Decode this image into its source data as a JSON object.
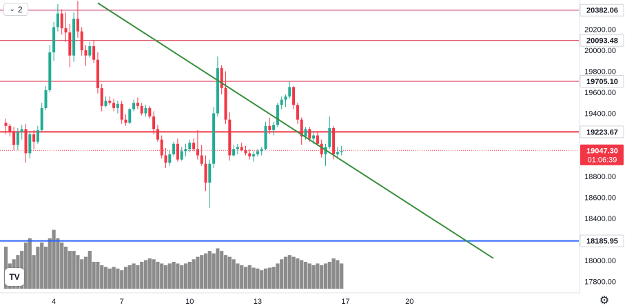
{
  "toolbar": {
    "collapse_count": "2",
    "collapse_icon": "chevron-down-icon"
  },
  "logo": {
    "name": "tradingview-logo",
    "text": "TV"
  },
  "settings_icon": "gear-icon",
  "colors": {
    "up": "#22ab94",
    "down": "#f23645",
    "volume": "#8c8c8c",
    "resistance": "#c2185b",
    "support": "#f23645",
    "level_blue": "#2962ff",
    "trendline": "#388e3c",
    "last_price_bg": "#f23645"
  },
  "chart_data": {
    "type": "candlestick",
    "y_axis": {
      "range": [
        17700,
        20520
      ],
      "ticks": [
        17800,
        18000,
        18200,
        18400,
        18600,
        18800,
        19000,
        19200,
        19400,
        19600,
        19800,
        20000,
        20200
      ]
    },
    "x_axis": {
      "ticks": [
        {
          "label": "4",
          "bar": 12
        },
        {
          "label": "7",
          "bar": 29
        },
        {
          "label": "10",
          "bar": 46
        },
        {
          "label": "13",
          "bar": 63
        },
        {
          "label": "17",
          "bar": 85
        },
        {
          "label": "20",
          "bar": 101
        }
      ]
    },
    "levels": [
      {
        "value": 20382.06,
        "label": "20382.06",
        "color": "#c2185b",
        "width": 1
      },
      {
        "value": 20093.48,
        "label": "20093.48",
        "color": "#d6223c",
        "width": 1
      },
      {
        "value": 19705.1,
        "label": "19705.10",
        "color": "#d6223c",
        "width": 1
      },
      {
        "value": 19223.67,
        "label": "19223.67",
        "color": "#f23645",
        "width": 2
      },
      {
        "value": 18185.95,
        "label": "18185.95",
        "color": "#2962ff",
        "width": 2
      }
    ],
    "last_price": {
      "value": 19047.3,
      "label": "19047.30",
      "timer": "01:06:39"
    },
    "trendline": {
      "start": {
        "bar": 23,
        "value": 20450
      },
      "end": {
        "bar": 122,
        "value": 18020
      }
    },
    "ohlc": [
      [
        19310,
        19350,
        19200,
        19280
      ],
      [
        19280,
        19300,
        19180,
        19230
      ],
      [
        19230,
        19270,
        19050,
        19100
      ],
      [
        19100,
        19260,
        19050,
        19220
      ],
      [
        19220,
        19290,
        19150,
        19250
      ],
      [
        19250,
        19300,
        18930,
        19020
      ],
      [
        19020,
        19230,
        18970,
        19200
      ],
      [
        19200,
        19240,
        19060,
        19130
      ],
      [
        19130,
        19280,
        19110,
        19240
      ],
      [
        19240,
        19500,
        19220,
        19450
      ],
      [
        19450,
        19660,
        19430,
        19620
      ],
      [
        19620,
        20050,
        19600,
        19980
      ],
      [
        19980,
        20270,
        19900,
        20220
      ],
      [
        20220,
        20440,
        20180,
        20350
      ],
      [
        20350,
        20390,
        20150,
        20210
      ],
      [
        20210,
        20360,
        20080,
        20170
      ],
      [
        20170,
        20250,
        19840,
        19950
      ],
      [
        19950,
        20360,
        19890,
        20300
      ],
      [
        20300,
        20470,
        20120,
        20180
      ],
      [
        20180,
        20220,
        19950,
        20000
      ],
      [
        20000,
        20050,
        19850,
        19950
      ],
      [
        19950,
        20080,
        19930,
        20040
      ],
      [
        20040,
        20090,
        19880,
        19910
      ],
      [
        19910,
        19980,
        19590,
        19640
      ],
      [
        19640,
        19680,
        19420,
        19470
      ],
      [
        19470,
        19560,
        19460,
        19520
      ],
      [
        19520,
        19560,
        19480,
        19500
      ],
      [
        19500,
        19540,
        19420,
        19450
      ],
      [
        19450,
        19520,
        19400,
        19490
      ],
      [
        19490,
        19520,
        19300,
        19340
      ],
      [
        19340,
        19390,
        19280,
        19310
      ],
      [
        19310,
        19450,
        19300,
        19440
      ],
      [
        19440,
        19530,
        19420,
        19500
      ],
      [
        19500,
        19550,
        19440,
        19470
      ],
      [
        19470,
        19500,
        19380,
        19400
      ],
      [
        19400,
        19480,
        19370,
        19450
      ],
      [
        19450,
        19470,
        19350,
        19370
      ],
      [
        19370,
        19420,
        19200,
        19250
      ],
      [
        19250,
        19290,
        19130,
        19150
      ],
      [
        19150,
        19190,
        18970,
        19000
      ],
      [
        19000,
        19070,
        18880,
        18930
      ],
      [
        18930,
        19050,
        18900,
        19010
      ],
      [
        19010,
        19130,
        18990,
        19110
      ],
      [
        19110,
        19160,
        18940,
        18960
      ],
      [
        18960,
        19080,
        18950,
        19040
      ],
      [
        19040,
        19110,
        18990,
        19060
      ],
      [
        19060,
        19150,
        19030,
        19120
      ],
      [
        19120,
        19160,
        19040,
        19060
      ],
      [
        19060,
        19240,
        18960,
        19000
      ],
      [
        19000,
        19100,
        18900,
        18920
      ],
      [
        18920,
        19000,
        18660,
        18740
      ],
      [
        18740,
        18960,
        18500,
        18920
      ],
      [
        18920,
        19460,
        18880,
        19400
      ],
      [
        19400,
        19940,
        19370,
        19830
      ],
      [
        19830,
        19860,
        19580,
        19640
      ],
      [
        19640,
        19800,
        19300,
        19340
      ],
      [
        19340,
        19410,
        18950,
        19000
      ],
      [
        19000,
        19100,
        18990,
        19060
      ],
      [
        19060,
        19110,
        19010,
        19080
      ],
      [
        19080,
        19120,
        19040,
        19050
      ],
      [
        19050,
        19090,
        19000,
        19020
      ],
      [
        19020,
        19060,
        18960,
        18990
      ],
      [
        18990,
        19040,
        18940,
        19010
      ],
      [
        19010,
        19060,
        18990,
        19040
      ],
      [
        19040,
        19080,
        19000,
        19060
      ],
      [
        19060,
        19320,
        19050,
        19280
      ],
      [
        19280,
        19360,
        19200,
        19240
      ],
      [
        19240,
        19320,
        19190,
        19290
      ],
      [
        19290,
        19500,
        19270,
        19480
      ],
      [
        19480,
        19560,
        19440,
        19530
      ],
      [
        19530,
        19580,
        19460,
        19560
      ],
      [
        19560,
        19700,
        19540,
        19650
      ],
      [
        19650,
        19660,
        19440,
        19480
      ],
      [
        19480,
        19500,
        19300,
        19340
      ],
      [
        19340,
        19360,
        19100,
        19180
      ],
      [
        19180,
        19270,
        19150,
        19250
      ],
      [
        19250,
        19270,
        19130,
        19160
      ],
      [
        19160,
        19230,
        19110,
        19190
      ],
      [
        19190,
        19230,
        19090,
        19110
      ],
      [
        19110,
        19150,
        18980,
        19010
      ],
      [
        19010,
        19110,
        18900,
        19080
      ],
      [
        19080,
        19370,
        19060,
        19260
      ],
      [
        19260,
        19280,
        18960,
        19010
      ],
      [
        19010,
        19080,
        18980,
        19030
      ],
      [
        19030,
        19090,
        19000,
        19040
      ]
    ],
    "volume": [
      50,
      30,
      35,
      40,
      45,
      55,
      60,
      40,
      50,
      55,
      50,
      60,
      70,
      60,
      55,
      50,
      45,
      45,
      40,
      35,
      38,
      45,
      32,
      32,
      28,
      26,
      24,
      26,
      24,
      22,
      26,
      28,
      30,
      28,
      32,
      34,
      36,
      35,
      32,
      30,
      28,
      30,
      32,
      30,
      28,
      30,
      32,
      35,
      38,
      40,
      42,
      45,
      42,
      48,
      45,
      40,
      38,
      35,
      30,
      28,
      26,
      28,
      25,
      24,
      22,
      24,
      25,
      26,
      30,
      35,
      38,
      40,
      38,
      36,
      34,
      32,
      30,
      28,
      30,
      28,
      30,
      32,
      36,
      34,
      30
    ]
  }
}
